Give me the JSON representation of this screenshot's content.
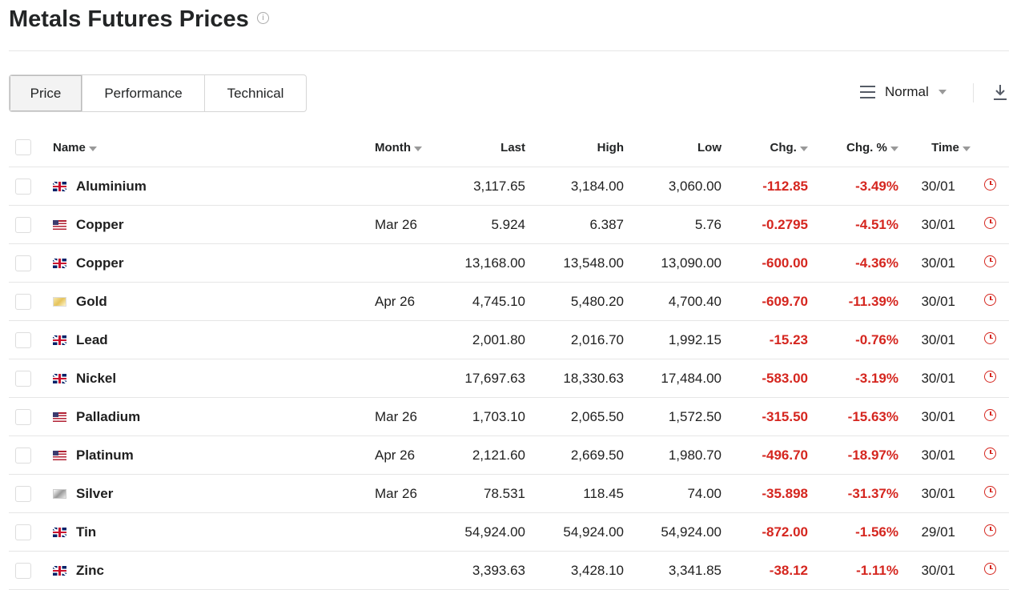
{
  "title": "Metals Futures Prices",
  "tabs": [
    "Price",
    "Performance",
    "Technical"
  ],
  "view": {
    "label": "Normal"
  },
  "columns": {
    "name": "Name",
    "month": "Month",
    "last": "Last",
    "high": "High",
    "low": "Low",
    "chg": "Chg.",
    "chg_pct": "Chg. %",
    "time": "Time"
  },
  "colors": {
    "negative": "#d5261f"
  },
  "rows": [
    {
      "flag": "uk",
      "name": "Aluminium",
      "month": "",
      "last": "3,117.65",
      "high": "3,184.00",
      "low": "3,060.00",
      "chg": "-112.85",
      "chg_pct": "-3.49%",
      "time": "30/01"
    },
    {
      "flag": "us",
      "name": "Copper",
      "month": "Mar 26",
      "last": "5.924",
      "high": "6.387",
      "low": "5.76",
      "chg": "-0.2795",
      "chg_pct": "-4.51%",
      "time": "30/01"
    },
    {
      "flag": "uk",
      "name": "Copper",
      "month": "",
      "last": "13,168.00",
      "high": "13,548.00",
      "low": "13,090.00",
      "chg": "-600.00",
      "chg_pct": "-4.36%",
      "time": "30/01"
    },
    {
      "flag": "gold",
      "name": "Gold",
      "month": "Apr 26",
      "last": "4,745.10",
      "high": "5,480.20",
      "low": "4,700.40",
      "chg": "-609.70",
      "chg_pct": "-11.39%",
      "time": "30/01"
    },
    {
      "flag": "uk",
      "name": "Lead",
      "month": "",
      "last": "2,001.80",
      "high": "2,016.70",
      "low": "1,992.15",
      "chg": "-15.23",
      "chg_pct": "-0.76%",
      "time": "30/01"
    },
    {
      "flag": "uk",
      "name": "Nickel",
      "month": "",
      "last": "17,697.63",
      "high": "18,330.63",
      "low": "17,484.00",
      "chg": "-583.00",
      "chg_pct": "-3.19%",
      "time": "30/01"
    },
    {
      "flag": "us",
      "name": "Palladium",
      "month": "Mar 26",
      "last": "1,703.10",
      "high": "2,065.50",
      "low": "1,572.50",
      "chg": "-315.50",
      "chg_pct": "-15.63%",
      "time": "30/01"
    },
    {
      "flag": "us",
      "name": "Platinum",
      "month": "Apr 26",
      "last": "2,121.60",
      "high": "2,669.50",
      "low": "1,980.70",
      "chg": "-496.70",
      "chg_pct": "-18.97%",
      "time": "30/01"
    },
    {
      "flag": "silver",
      "name": "Silver",
      "month": "Mar 26",
      "last": "78.531",
      "high": "118.45",
      "low": "74.00",
      "chg": "-35.898",
      "chg_pct": "-31.37%",
      "time": "30/01"
    },
    {
      "flag": "uk",
      "name": "Tin",
      "month": "",
      "last": "54,924.00",
      "high": "54,924.00",
      "low": "54,924.00",
      "chg": "-872.00",
      "chg_pct": "-1.56%",
      "time": "29/01"
    },
    {
      "flag": "uk",
      "name": "Zinc",
      "month": "",
      "last": "3,393.63",
      "high": "3,428.10",
      "low": "3,341.85",
      "chg": "-38.12",
      "chg_pct": "-1.11%",
      "time": "30/01"
    }
  ]
}
